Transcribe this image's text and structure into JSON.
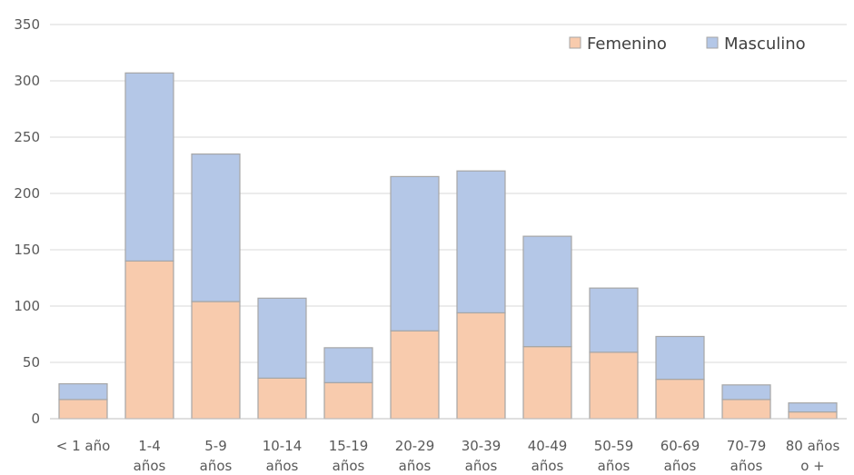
{
  "chart_data": {
    "type": "bar",
    "stacked": true,
    "title": "",
    "xlabel": "",
    "ylabel": "",
    "ylim": [
      0,
      350
    ],
    "yticks": [
      0,
      50,
      100,
      150,
      200,
      250,
      300,
      350
    ],
    "grid": true,
    "legend_position": "top-right",
    "categories": [
      [
        "< 1 año"
      ],
      [
        "1-4",
        "años"
      ],
      [
        "5-9",
        "años"
      ],
      [
        "10-14",
        "años"
      ],
      [
        "15-19",
        "años"
      ],
      [
        "20-29",
        "años"
      ],
      [
        "30-39",
        "años"
      ],
      [
        "40-49",
        "años"
      ],
      [
        "50-59",
        "años"
      ],
      [
        "60-69",
        "años"
      ],
      [
        "70-79",
        "años"
      ],
      [
        "80 años",
        "o +"
      ]
    ],
    "series": [
      {
        "name": "Femenino",
        "color": "#f8cbad",
        "values": [
          17,
          140,
          104,
          36,
          32,
          78,
          94,
          64,
          59,
          35,
          17,
          6
        ]
      },
      {
        "name": "Masculino",
        "color": "#b4c7e7",
        "values": [
          14,
          167,
          131,
          71,
          31,
          137,
          126,
          98,
          57,
          38,
          13,
          8
        ]
      }
    ]
  }
}
